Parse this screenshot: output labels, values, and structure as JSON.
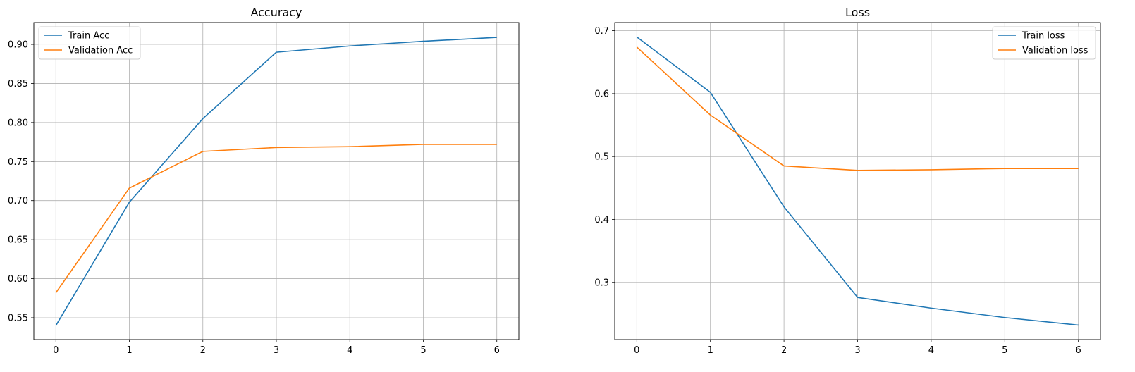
{
  "chart_data": [
    {
      "type": "line",
      "title": "Accuracy",
      "xlabel": "",
      "ylabel": "",
      "x": [
        0,
        1,
        2,
        3,
        4,
        5,
        6
      ],
      "xlim": [
        -0.3,
        6.3
      ],
      "ylim": [
        0.522,
        0.928
      ],
      "xticks": [
        0,
        1,
        2,
        3,
        4,
        5,
        6
      ],
      "yticks": [
        0.55,
        0.6,
        0.65,
        0.7,
        0.75,
        0.8,
        0.85,
        0.9
      ],
      "ytick_labels": [
        "0.55",
        "0.60",
        "0.65",
        "0.70",
        "0.75",
        "0.80",
        "0.85",
        "0.90"
      ],
      "grid": true,
      "legend_position": "upper-left",
      "series": [
        {
          "name": "Train Acc",
          "color": "#1f77b4",
          "values": [
            0.54,
            0.698,
            0.805,
            0.89,
            0.898,
            0.904,
            0.909
          ]
        },
        {
          "name": "Validation Acc",
          "color": "#ff7f0e",
          "values": [
            0.582,
            0.716,
            0.763,
            0.768,
            0.769,
            0.772,
            0.772
          ]
        }
      ]
    },
    {
      "type": "line",
      "title": "Loss",
      "xlabel": "",
      "ylabel": "",
      "x": [
        0,
        1,
        2,
        3,
        4,
        5,
        6
      ],
      "xlim": [
        -0.3,
        6.3
      ],
      "ylim": [
        0.209,
        0.713
      ],
      "xticks": [
        0,
        1,
        2,
        3,
        4,
        5,
        6
      ],
      "yticks": [
        0.3,
        0.4,
        0.5,
        0.6,
        0.7
      ],
      "ytick_labels": [
        "0.3",
        "0.4",
        "0.5",
        "0.6",
        "0.7"
      ],
      "grid": true,
      "legend_position": "upper-right",
      "series": [
        {
          "name": "Train loss",
          "color": "#1f77b4",
          "values": [
            0.69,
            0.602,
            0.42,
            0.276,
            0.259,
            0.244,
            0.232
          ]
        },
        {
          "name": "Validation loss",
          "color": "#ff7f0e",
          "values": [
            0.674,
            0.566,
            0.485,
            0.478,
            0.479,
            0.481,
            0.481
          ]
        }
      ]
    }
  ]
}
